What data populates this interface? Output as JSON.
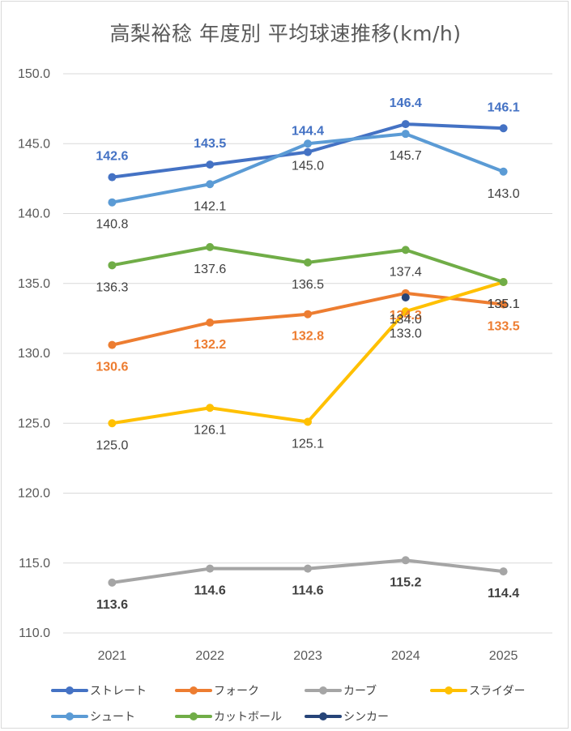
{
  "chart_data": {
    "type": "line",
    "title": "高梨裕稔 年度別 平均球速推移(km/h)",
    "categories": [
      "2021",
      "2022",
      "2023",
      "2024",
      "2025"
    ],
    "ylim": [
      110,
      150
    ],
    "yticks": [
      "110.0",
      "115.0",
      "120.0",
      "125.0",
      "130.0",
      "135.0",
      "140.0",
      "145.0",
      "150.0"
    ],
    "grid": true,
    "legend_position": "bottom",
    "series": [
      {
        "name": "ストレート",
        "color": "#4472C4",
        "values": [
          142.6,
          143.5,
          144.4,
          146.4,
          146.1
        ],
        "labels": [
          "142.6",
          "143.5",
          "144.4",
          "146.4",
          "146.1"
        ],
        "label_pos": "above",
        "label_color": "#4472C4",
        "label_bold": true
      },
      {
        "name": "フォーク",
        "color": "#ED7D31",
        "values": [
          130.6,
          132.2,
          132.8,
          134.3,
          133.5
        ],
        "labels": [
          "130.6",
          "132.2",
          "132.8",
          "134.3",
          "133.5"
        ],
        "label_pos": "below",
        "label_color": "#ED7D31",
        "label_bold": true
      },
      {
        "name": "カーブ",
        "color": "#A5A5A5",
        "values": [
          113.6,
          114.6,
          114.6,
          115.2,
          114.4
        ],
        "labels": [
          "113.6",
          "114.6",
          "114.6",
          "115.2",
          "114.4"
        ],
        "label_pos": "below",
        "label_color": "#404040",
        "label_bold": true
      },
      {
        "name": "スライダー",
        "color": "#FFC000",
        "values": [
          125.0,
          126.1,
          125.1,
          133.0,
          135.1
        ],
        "labels": [
          "125.0",
          "126.1",
          "125.1",
          "133.0",
          "135.1"
        ],
        "label_pos": "below",
        "label_color": "#404040",
        "label_bold": false
      },
      {
        "name": "シュート",
        "color": "#5B9BD5",
        "values": [
          140.8,
          142.1,
          145.0,
          145.7,
          143.0
        ],
        "labels": [
          "140.8",
          "142.1",
          "145.0",
          "145.7",
          "143.0"
        ],
        "label_pos": "below",
        "label_color": "#404040",
        "label_bold": false
      },
      {
        "name": "カットボール",
        "color": "#70AD47",
        "values": [
          136.3,
          137.6,
          136.5,
          137.4,
          135.1
        ],
        "labels": [
          "136.3",
          "137.6",
          "136.5",
          "137.4",
          "135.1"
        ],
        "label_pos": "below",
        "label_color": "#404040",
        "label_bold": false
      },
      {
        "name": "シンカー",
        "color": "#264478",
        "values": [
          null,
          null,
          null,
          134.0,
          null
        ],
        "labels": [
          "",
          "",
          "",
          "134.0",
          ""
        ],
        "label_pos": "below",
        "label_color": "#404040",
        "label_bold": false
      }
    ]
  }
}
